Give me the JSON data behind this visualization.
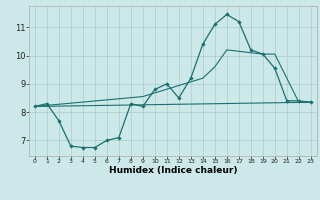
{
  "xlabel": "Humidex (Indice chaleur)",
  "bg_color": "#cce8e8",
  "line_color": "#1a7070",
  "grid_color": "#aacccc",
  "xlim": [
    -0.5,
    23.5
  ],
  "ylim": [
    6.45,
    11.75
  ],
  "xticks": [
    0,
    1,
    2,
    3,
    4,
    5,
    6,
    7,
    8,
    9,
    10,
    11,
    12,
    13,
    14,
    15,
    16,
    17,
    18,
    19,
    20,
    21,
    22,
    23
  ],
  "yticks": [
    7,
    8,
    9,
    10,
    11
  ],
  "curve1_x": [
    0,
    1,
    2,
    3,
    4,
    5,
    6,
    7,
    8,
    9,
    10,
    11,
    12,
    13,
    14,
    15,
    16,
    17,
    18,
    19,
    20,
    21,
    22,
    23
  ],
  "curve1_y": [
    8.2,
    8.3,
    7.7,
    6.8,
    6.75,
    6.75,
    7.0,
    7.1,
    8.3,
    8.2,
    8.8,
    9.0,
    8.5,
    9.2,
    10.4,
    11.1,
    11.45,
    11.2,
    10.2,
    10.05,
    9.55,
    8.4,
    8.4,
    8.35
  ],
  "curve2_x": [
    0,
    23
  ],
  "curve2_y": [
    8.2,
    8.35
  ],
  "curve3_x": [
    0,
    9,
    14,
    15,
    16,
    19,
    20,
    22,
    23
  ],
  "curve3_y": [
    8.2,
    8.55,
    9.2,
    9.6,
    10.2,
    10.05,
    10.05,
    8.35,
    8.35
  ],
  "figsize": [
    3.2,
    2.0
  ],
  "dpi": 100
}
